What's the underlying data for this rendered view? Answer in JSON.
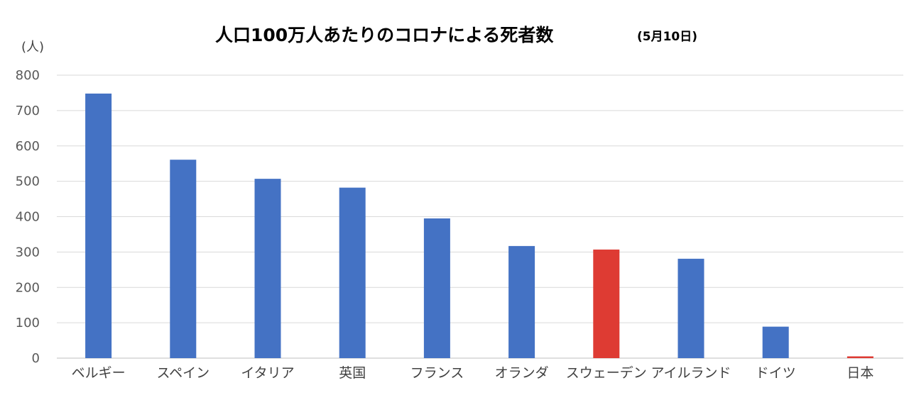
{
  "chart_data": {
    "type": "bar",
    "title": "人口100万人あたりのコロナによる死者数",
    "subtitle": "(5月10日)",
    "ylabel": "(人)",
    "xlabel": "",
    "ylim": [
      0,
      800
    ],
    "yticks": [
      "0",
      "100",
      "200",
      "300",
      "400",
      "500",
      "600",
      "700",
      "800"
    ],
    "grid": true,
    "legend": "none",
    "categories": [
      "ベルギー",
      "スペイン",
      "イタリア",
      "英国",
      "フランス",
      "オランダ",
      "スウェーデン",
      "アイルランド",
      "ドイツ",
      "日本"
    ],
    "values": [
      748,
      561,
      507,
      482,
      395,
      317,
      307,
      281,
      89,
      5
    ],
    "highlighted": [
      "スウェーデン",
      "日本"
    ],
    "colors": {
      "bar": "#4472c4",
      "highlight": "#de3b33"
    }
  }
}
